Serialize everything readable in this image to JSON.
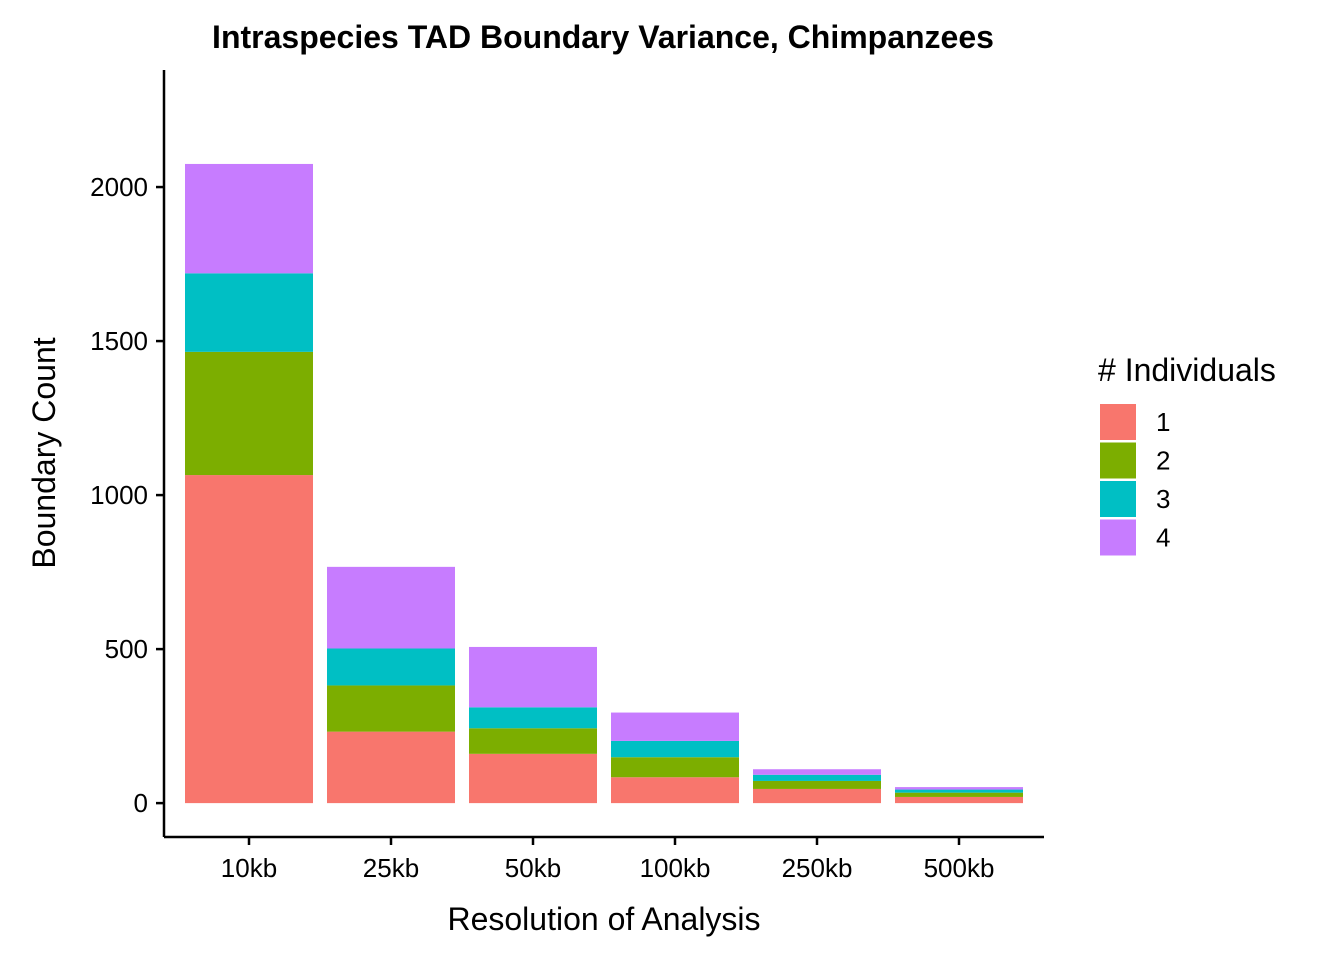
{
  "chart_data": {
    "type": "bar",
    "stacked": true,
    "title": "Intraspecies TAD Boundary Variance, Chimpanzees",
    "xlabel": "Resolution of Analysis",
    "ylabel": "Boundary Count",
    "categories": [
      "10kb",
      "25kb",
      "50kb",
      "100kb",
      "250kb",
      "500kb"
    ],
    "y_ticks": [
      0,
      500,
      1000,
      1500,
      2000
    ],
    "ylim": [
      -110,
      2380
    ],
    "grid": false,
    "legend": {
      "title": "# Individuals",
      "position": "right"
    },
    "series": [
      {
        "name": "1",
        "color": "#F8766D",
        "values": [
          1065,
          232,
          160,
          84,
          46,
          20
        ]
      },
      {
        "name": "2",
        "color": "#7CAE00",
        "values": [
          400,
          150,
          83,
          65,
          26,
          14
        ]
      },
      {
        "name": "3",
        "color": "#00BFC4",
        "values": [
          255,
          120,
          68,
          53,
          20,
          10
        ]
      },
      {
        "name": "4",
        "color": "#C77CFF",
        "values": [
          355,
          265,
          196,
          92,
          18,
          8
        ]
      }
    ]
  }
}
